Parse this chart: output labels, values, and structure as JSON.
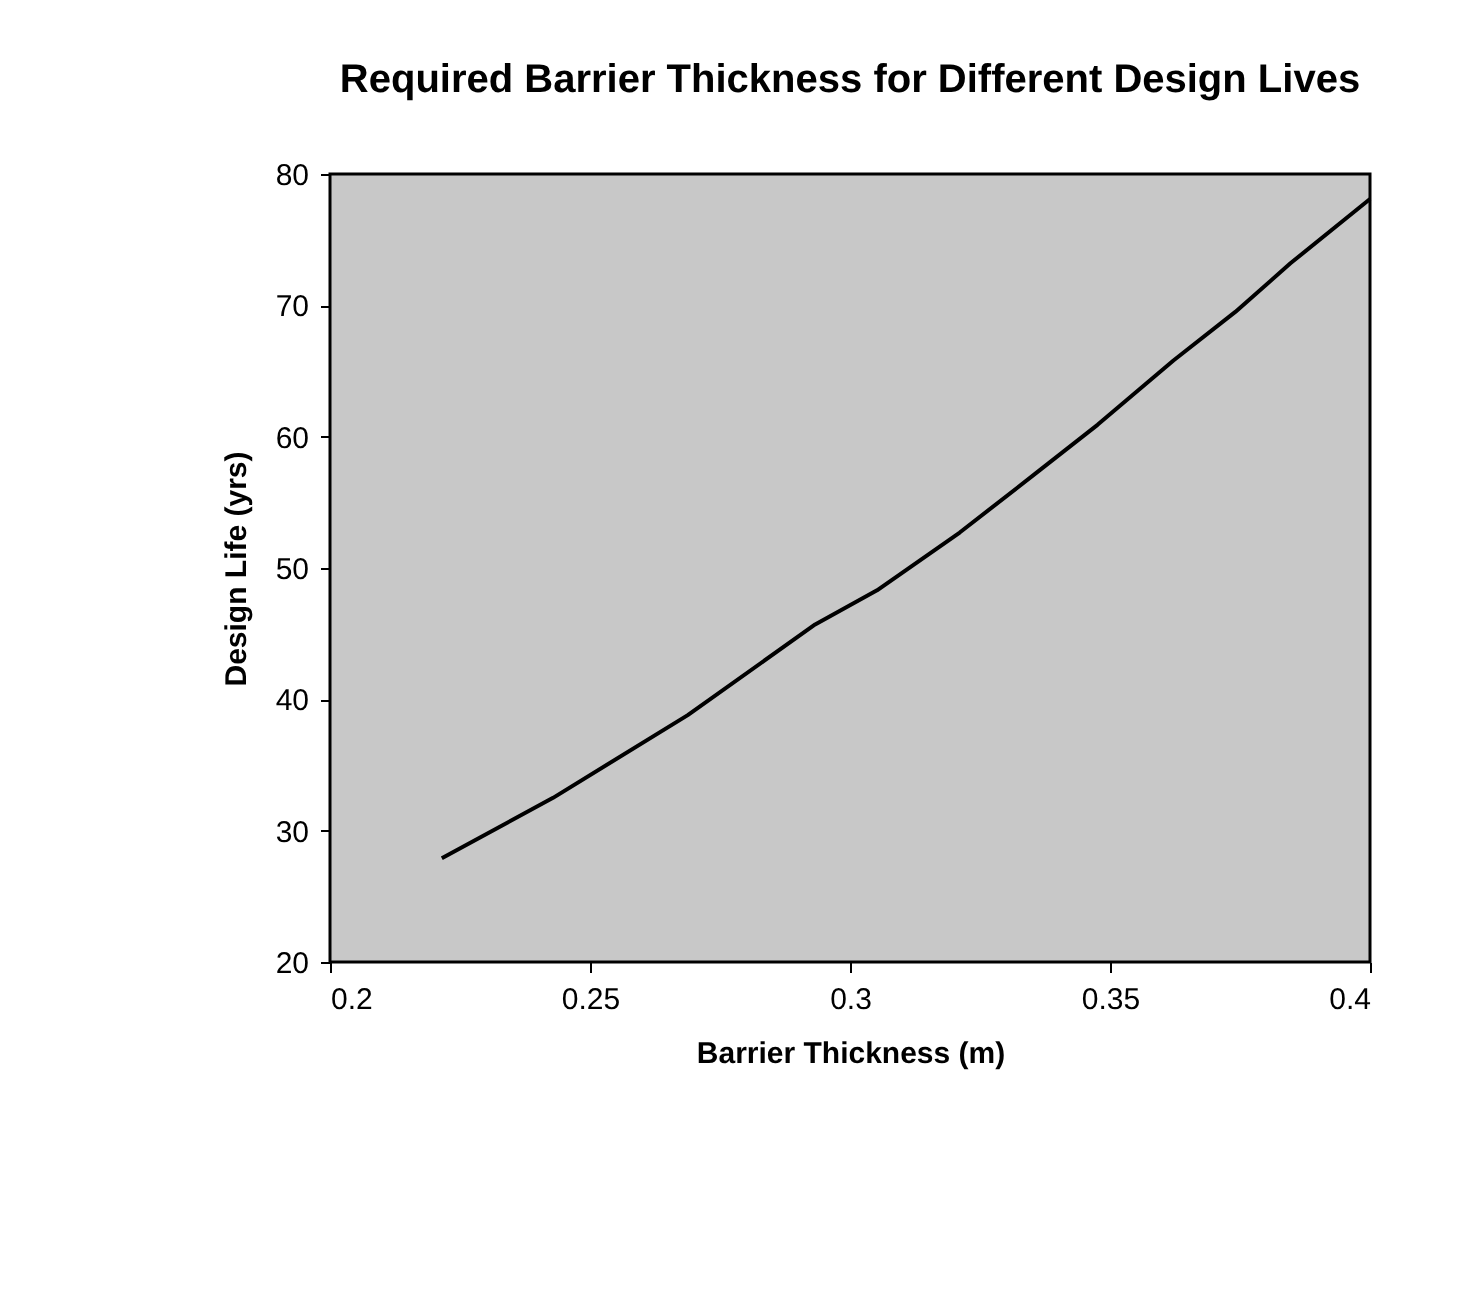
{
  "chart_data": {
    "type": "line",
    "title": "Required Barrier Thickness for Different Design Lives",
    "xlabel": "Barrier Thickness (m)",
    "ylabel": "Design Life (yrs)",
    "x": [
      0.2215,
      0.2429,
      0.2688,
      0.2933,
      0.3052,
      0.3211,
      0.3357,
      0.3476,
      0.3622,
      0.3741,
      0.3847,
      0.4
    ],
    "series": [
      {
        "color": "#000000",
        "values": [
          27.9,
          32.5,
          38.8,
          45.7,
          48.3,
          52.7,
          57.2,
          60.9,
          65.8,
          69.5,
          73.2,
          78.1
        ]
      }
    ],
    "xlim": [
      0.2,
      0.4
    ],
    "xticks": [
      0.2,
      0.25,
      0.3,
      0.35,
      0.4
    ],
    "ylim": [
      20,
      80
    ],
    "yticks": [
      20,
      30,
      40,
      50,
      60,
      70,
      80
    ],
    "grid": false,
    "legend": false,
    "marker": "none",
    "line_style": "solid"
  }
}
